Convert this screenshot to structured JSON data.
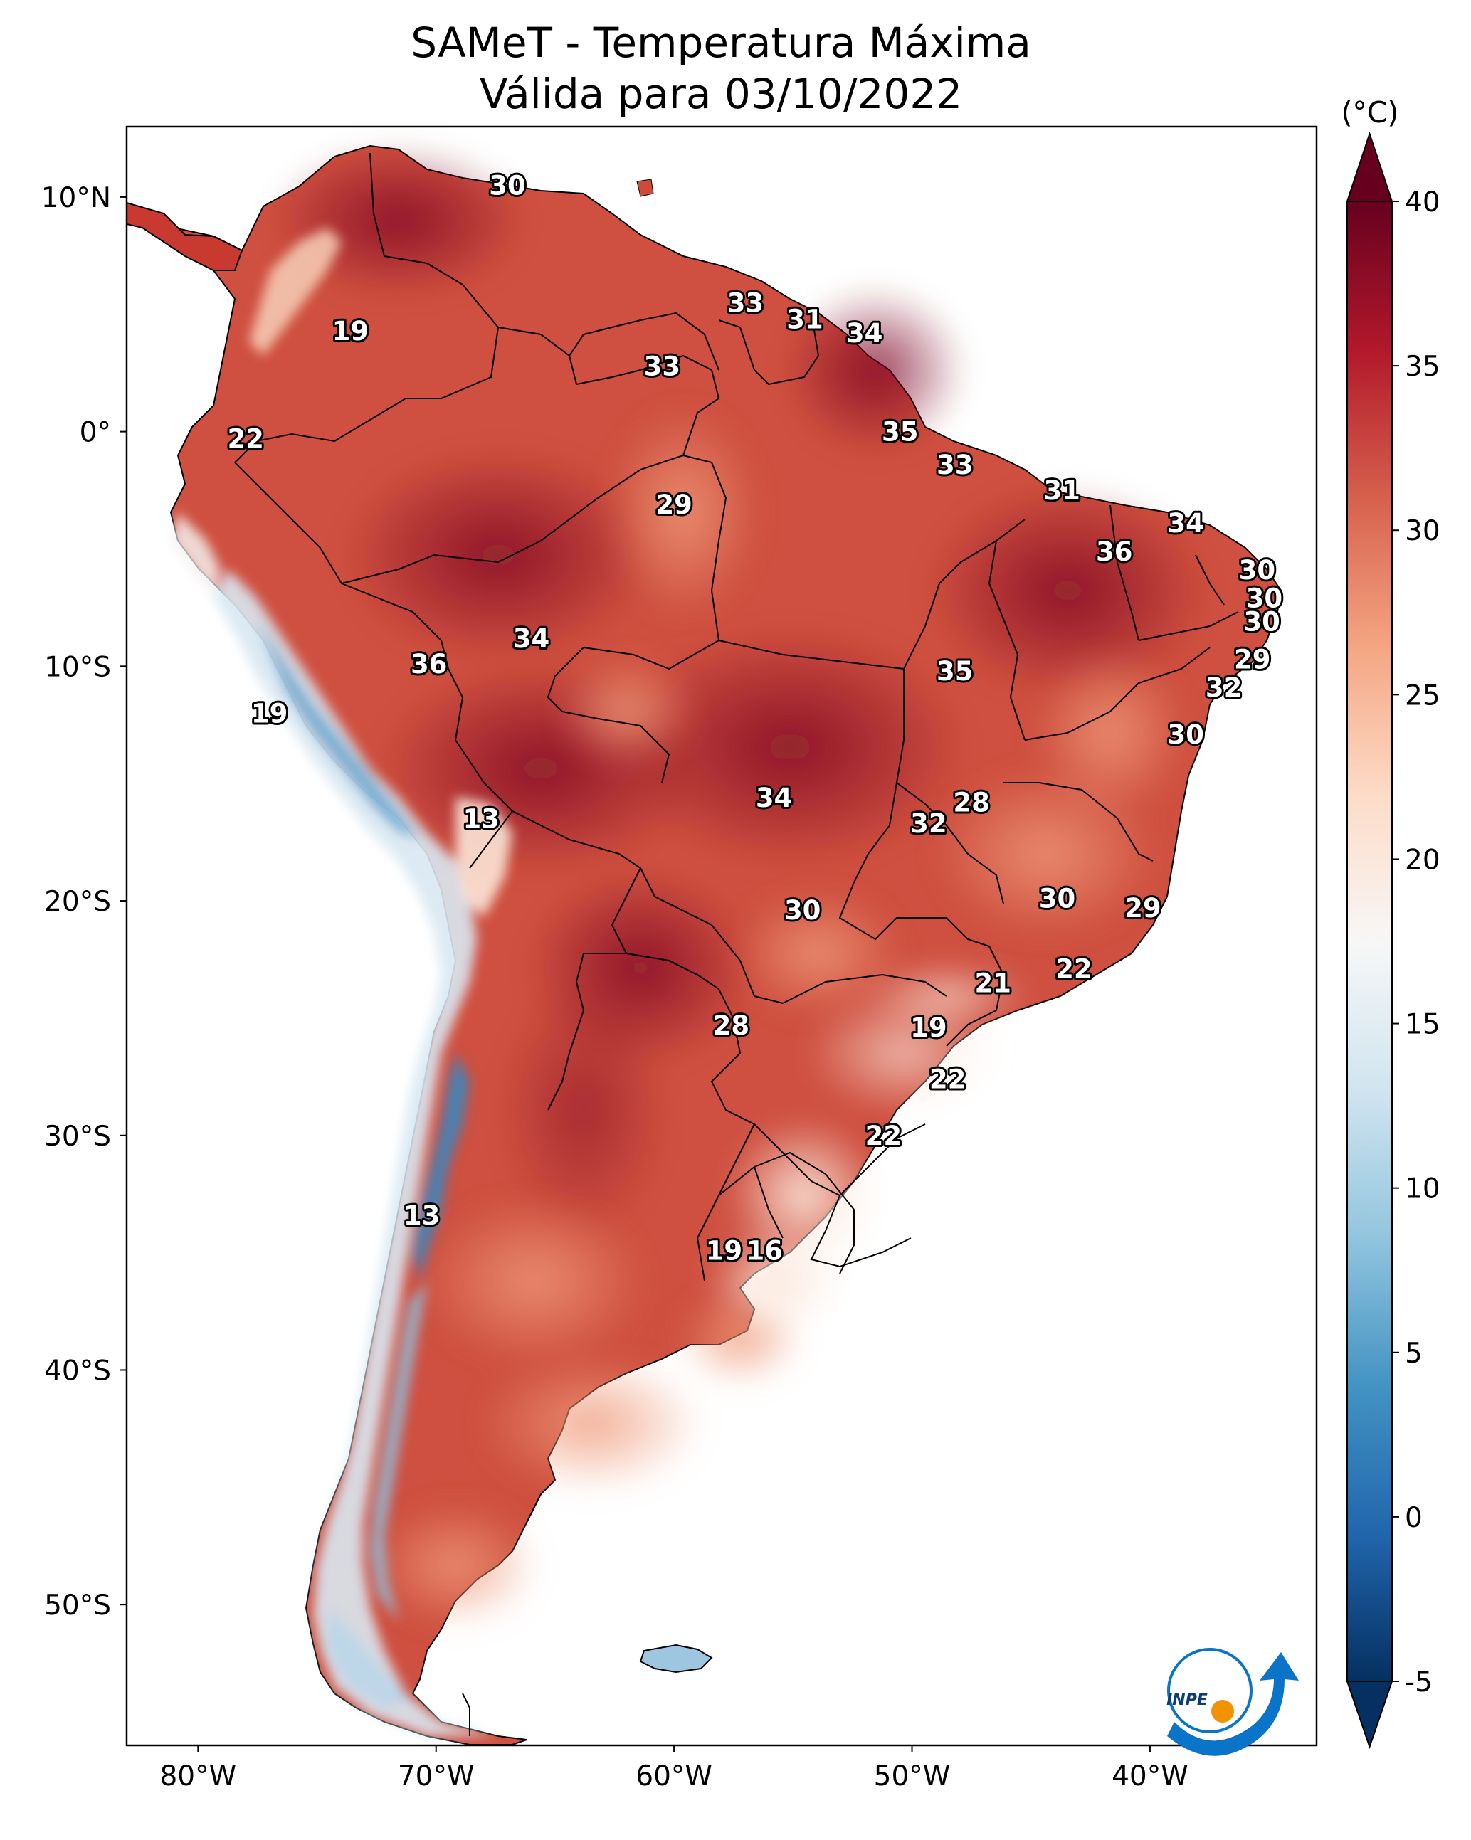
{
  "title": {
    "line1": "SAMeT - Temperatura Máxima",
    "line2": "Válida para 03/10/2022"
  },
  "map": {
    "lon_range": [
      -83,
      -33
    ],
    "lat_range": [
      -56,
      13
    ],
    "lon_ticks": [
      {
        "value": -80,
        "label": "80°W"
      },
      {
        "value": -70,
        "label": "70°W"
      },
      {
        "value": -60,
        "label": "60°W"
      },
      {
        "value": -50,
        "label": "50°W"
      },
      {
        "value": -40,
        "label": "40°W"
      }
    ],
    "lat_ticks": [
      {
        "value": 10,
        "label": "10°N"
      },
      {
        "value": 0,
        "label": "0°"
      },
      {
        "value": -10,
        "label": "10°S"
      },
      {
        "value": -20,
        "label": "20°S"
      },
      {
        "value": -30,
        "label": "30°S"
      },
      {
        "value": -40,
        "label": "40°S"
      },
      {
        "value": -50,
        "label": "50°S"
      }
    ]
  },
  "colorbar": {
    "unit": "(°C)",
    "range": [
      -5,
      40
    ],
    "ticks": [
      {
        "value": 40,
        "label": "40"
      },
      {
        "value": 35,
        "label": "35"
      },
      {
        "value": 30,
        "label": "30"
      },
      {
        "value": 25,
        "label": "25"
      },
      {
        "value": 20,
        "label": "20"
      },
      {
        "value": 15,
        "label": "15"
      },
      {
        "value": 10,
        "label": "10"
      },
      {
        "value": 5,
        "label": "5"
      },
      {
        "value": 0,
        "label": "0"
      },
      {
        "value": -5,
        "label": "-5"
      }
    ],
    "colors": [
      "#053061",
      "#2166ac",
      "#4393c3",
      "#92c5de",
      "#d1e5f0",
      "#f7f7f7",
      "#fddbc7",
      "#f4a582",
      "#d6604d",
      "#b2182b",
      "#67001f"
    ]
  },
  "logo": {
    "text": "INPE",
    "colors": {
      "blue": "#0a74c8",
      "orange": "#f39200"
    }
  },
  "chart_data": {
    "type": "heatmap",
    "title": "SAMeT - Temperatura Máxima Válida para 03/10/2022",
    "variable_unit": "(°C)",
    "color_range": [
      -5,
      40
    ],
    "station_values": [
      {
        "lon": -67.0,
        "lat": 10.5,
        "value": "30"
      },
      {
        "lon": -57.0,
        "lat": 5.5,
        "value": "33"
      },
      {
        "lon": -54.5,
        "lat": 4.8,
        "value": "31"
      },
      {
        "lon": -52.0,
        "lat": 4.2,
        "value": "34"
      },
      {
        "lon": -73.6,
        "lat": 4.3,
        "value": "19"
      },
      {
        "lon": -60.5,
        "lat": 2.8,
        "value": "33"
      },
      {
        "lon": -50.5,
        "lat": 0.0,
        "value": "35"
      },
      {
        "lon": -78.0,
        "lat": -0.3,
        "value": "22"
      },
      {
        "lon": -48.2,
        "lat": -1.4,
        "value": "33"
      },
      {
        "lon": -43.7,
        "lat": -2.5,
        "value": "31"
      },
      {
        "lon": -60.0,
        "lat": -3.1,
        "value": "29"
      },
      {
        "lon": -38.5,
        "lat": -3.9,
        "value": "34"
      },
      {
        "lon": -41.5,
        "lat": -5.1,
        "value": "36"
      },
      {
        "lon": -35.5,
        "lat": -5.9,
        "value": "30"
      },
      {
        "lon": -35.2,
        "lat": -7.1,
        "value": "30"
      },
      {
        "lon": -35.3,
        "lat": -8.1,
        "value": "30"
      },
      {
        "lon": -66.0,
        "lat": -8.8,
        "value": "34"
      },
      {
        "lon": -70.3,
        "lat": -9.9,
        "value": "36"
      },
      {
        "lon": -35.7,
        "lat": -9.7,
        "value": "29"
      },
      {
        "lon": -48.2,
        "lat": -10.2,
        "value": "35"
      },
      {
        "lon": -36.9,
        "lat": -10.9,
        "value": "32"
      },
      {
        "lon": -77.0,
        "lat": -12.0,
        "value": "19"
      },
      {
        "lon": -38.5,
        "lat": -12.9,
        "value": "30"
      },
      {
        "lon": -55.8,
        "lat": -15.6,
        "value": "34"
      },
      {
        "lon": -47.5,
        "lat": -15.8,
        "value": "28"
      },
      {
        "lon": -49.3,
        "lat": -16.7,
        "value": "32"
      },
      {
        "lon": -68.1,
        "lat": -16.5,
        "value": "13"
      },
      {
        "lon": -43.9,
        "lat": -19.9,
        "value": "30"
      },
      {
        "lon": -40.3,
        "lat": -20.3,
        "value": "29"
      },
      {
        "lon": -54.6,
        "lat": -20.4,
        "value": "30"
      },
      {
        "lon": -43.2,
        "lat": -22.9,
        "value": "22"
      },
      {
        "lon": -46.6,
        "lat": -23.5,
        "value": "21"
      },
      {
        "lon": -57.6,
        "lat": -25.3,
        "value": "28"
      },
      {
        "lon": -49.3,
        "lat": -25.4,
        "value": "19"
      },
      {
        "lon": -48.5,
        "lat": -27.6,
        "value": "22"
      },
      {
        "lon": -51.2,
        "lat": -30.0,
        "value": "22"
      },
      {
        "lon": -70.6,
        "lat": -33.4,
        "value": "13"
      },
      {
        "lon": -57.9,
        "lat": -34.9,
        "value": "19"
      },
      {
        "lon": -56.2,
        "lat": -34.9,
        "value": "16"
      }
    ]
  }
}
